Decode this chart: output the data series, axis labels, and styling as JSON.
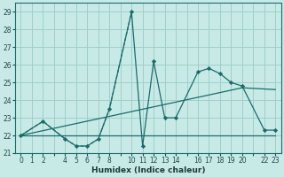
{
  "xlabel": "Humidex (Indice chaleur)",
  "bg_color": "#c8eae7",
  "grid_color": "#9ecfcb",
  "line_color": "#1a6b6b",
  "xlim": [
    -0.5,
    23.5
  ],
  "ylim": [
    21,
    29.5
  ],
  "xticks": [
    0,
    1,
    2,
    4,
    5,
    6,
    7,
    8,
    10,
    11,
    12,
    13,
    14,
    16,
    17,
    18,
    19,
    20,
    22,
    23
  ],
  "xgrid_ticks": [
    0,
    1,
    2,
    3,
    4,
    5,
    6,
    7,
    8,
    9,
    10,
    11,
    12,
    13,
    14,
    15,
    16,
    17,
    18,
    19,
    20,
    21,
    22,
    23
  ],
  "yticks": [
    21,
    22,
    23,
    24,
    25,
    26,
    27,
    28,
    29
  ],
  "dotted_line": {
    "x": [
      0,
      2,
      4,
      5,
      6,
      7,
      8,
      10
    ],
    "y": [
      22,
      22.8,
      21.8,
      21.4,
      21.4,
      21.8,
      23.5,
      29
    ]
  },
  "main_line": {
    "x": [
      0,
      2,
      4,
      5,
      6,
      7,
      8,
      10,
      11,
      12,
      13,
      14,
      16,
      17,
      18,
      19,
      20,
      22,
      23
    ],
    "y": [
      22,
      22.8,
      21.8,
      21.4,
      21.4,
      21.8,
      23.5,
      29,
      21.4,
      26.2,
      23,
      23,
      25.6,
      25.8,
      25.5,
      25,
      24.8,
      22.3,
      22.3
    ]
  },
  "flat_line": {
    "x": [
      0,
      23
    ],
    "y": [
      22,
      22
    ]
  },
  "trend_line": {
    "x": [
      0,
      20,
      23
    ],
    "y": [
      22,
      24.7,
      24.6
    ]
  }
}
